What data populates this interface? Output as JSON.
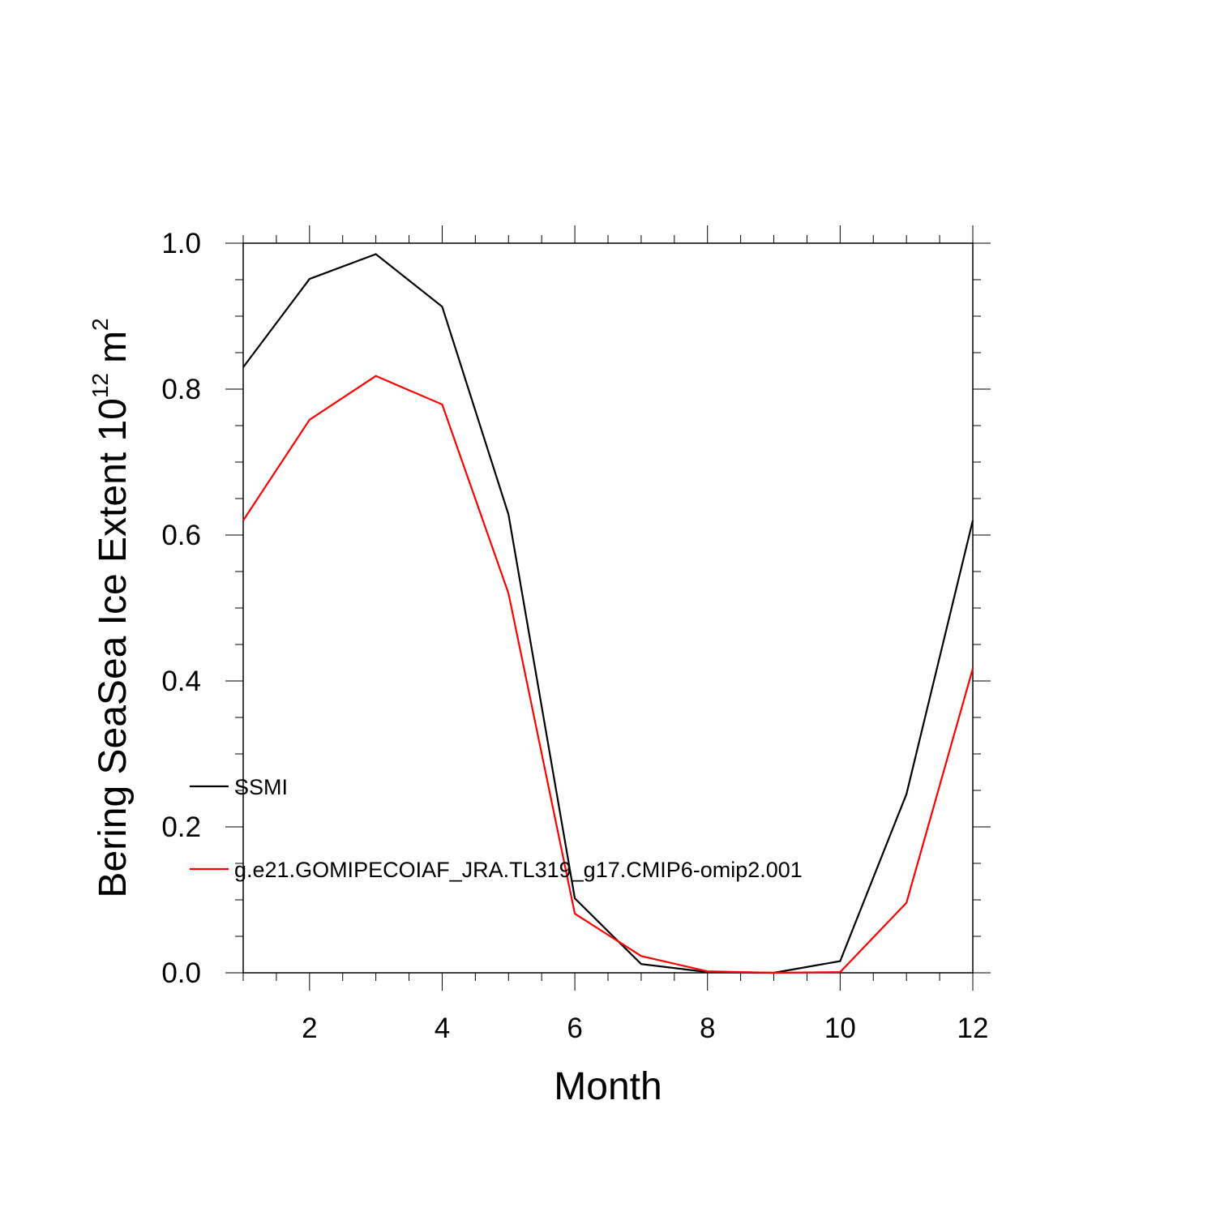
{
  "chart_data": {
    "type": "line",
    "title": "",
    "xlabel": "Month",
    "ylabel": "Bering SeaSea Ice Extent 10",
    "ylabel_superscript": "12",
    "ylabel_unit": "m",
    "ylabel_unit_superscript": "2",
    "xlim": [
      1,
      12
    ],
    "ylim": [
      0,
      1.0
    ],
    "x_ticks": [
      2,
      4,
      6,
      8,
      10,
      12
    ],
    "x_tick_labels": [
      "2",
      "4",
      "6",
      "8",
      "10",
      "12"
    ],
    "y_ticks": [
      0,
      0.2,
      0.4,
      0.6,
      0.8,
      1.0
    ],
    "y_tick_labels": [
      "0.0",
      "0.2",
      "0.4",
      "0.6",
      "0.8",
      "1.0"
    ],
    "grid": false,
    "legend_placement": "bottom-left, inside plot",
    "x": [
      1,
      2,
      3,
      4,
      5,
      6,
      7,
      8,
      9,
      10,
      11,
      12
    ],
    "series": [
      {
        "name": "SSMI",
        "color": "#000000",
        "values": [
          0.83,
          0.951,
          0.985,
          0.913,
          0.628,
          0.102,
          0.012,
          0.001,
          0.0,
          0.016,
          0.245,
          0.62
        ]
      },
      {
        "name": "g.e21.GOMIPECOIAF_JRA.TL319_g17.CMIP6-omip2.001",
        "color": "#ff0000",
        "values": [
          0.62,
          0.758,
          0.818,
          0.779,
          0.52,
          0.081,
          0.023,
          0.002,
          0.0,
          0.001,
          0.096,
          0.417
        ]
      }
    ]
  }
}
